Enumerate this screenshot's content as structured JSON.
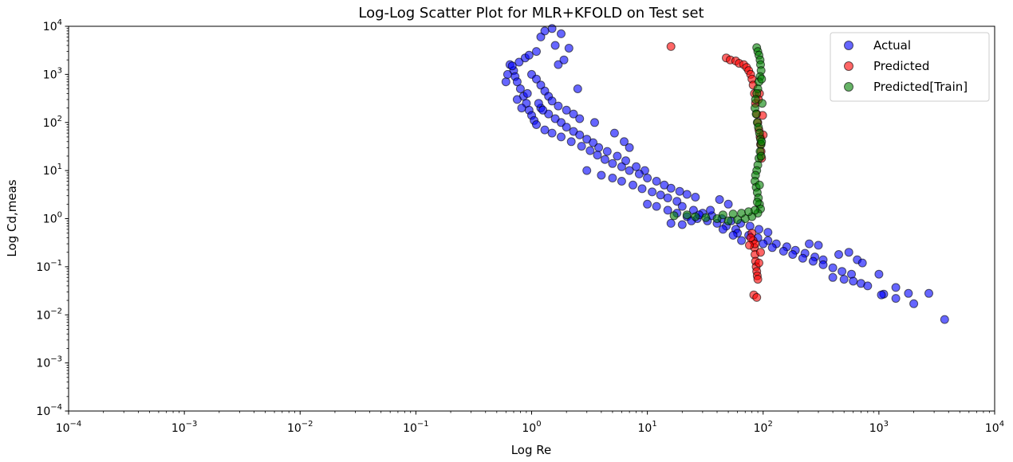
{
  "chart_data": {
    "type": "scatter",
    "title": "Log-Log Scatter Plot for MLR+KFOLD on Test set",
    "xlabel": "Log Re",
    "ylabel": "Log Cd,meas",
    "xscale": "log",
    "yscale": "log",
    "xlim": [
      0.0001,
      10000
    ],
    "ylim": [
      0.0001,
      10000
    ],
    "grid": false,
    "legend_position": "top-right",
    "x_tick_labels": [
      {
        "value": 0.0001,
        "base": "10",
        "exp": "−4"
      },
      {
        "value": 0.001,
        "base": "10",
        "exp": "−3"
      },
      {
        "value": 0.01,
        "base": "10",
        "exp": "−2"
      },
      {
        "value": 0.1,
        "base": "10",
        "exp": "−1"
      },
      {
        "value": 1,
        "base": "10",
        "exp": "0"
      },
      {
        "value": 10,
        "base": "10",
        "exp": "1"
      },
      {
        "value": 100,
        "base": "10",
        "exp": "2"
      },
      {
        "value": 1000,
        "base": "10",
        "exp": "3"
      },
      {
        "value": 10000,
        "base": "10",
        "exp": "4"
      }
    ],
    "y_tick_labels": [
      {
        "value": 0.0001,
        "base": "10",
        "exp": "−4"
      },
      {
        "value": 0.001,
        "base": "10",
        "exp": "−3"
      },
      {
        "value": 0.01,
        "base": "10",
        "exp": "−2"
      },
      {
        "value": 0.1,
        "base": "10",
        "exp": "−1"
      },
      {
        "value": 1,
        "base": "10",
        "exp": "0"
      },
      {
        "value": 10,
        "base": "10",
        "exp": "1"
      },
      {
        "value": 100,
        "base": "10",
        "exp": "2"
      },
      {
        "value": 1000,
        "base": "10",
        "exp": "3"
      },
      {
        "value": 10000,
        "base": "10",
        "exp": "4"
      }
    ],
    "series": [
      {
        "name": "Actual",
        "color": "#0000ff",
        "points": [
          [
            0.65,
            1600
          ],
          [
            0.7,
            1200
          ],
          [
            0.72,
            900
          ],
          [
            0.75,
            700
          ],
          [
            0.8,
            500
          ],
          [
            0.85,
            350
          ],
          [
            0.9,
            250
          ],
          [
            0.95,
            180
          ],
          [
            1.0,
            140
          ],
          [
            1.05,
            110
          ],
          [
            0.68,
            1500
          ],
          [
            0.78,
            1800
          ],
          [
            0.88,
            2200
          ],
          [
            0.95,
            2500
          ],
          [
            1.1,
            3000
          ],
          [
            1.2,
            6000
          ],
          [
            1.5,
            9000
          ],
          [
            1.3,
            8000
          ],
          [
            1.8,
            7000
          ],
          [
            1.6,
            4000
          ],
          [
            1.0,
            1000
          ],
          [
            1.1,
            800
          ],
          [
            1.2,
            600
          ],
          [
            1.3,
            450
          ],
          [
            1.4,
            350
          ],
          [
            1.5,
            280
          ],
          [
            1.7,
            220
          ],
          [
            2.0,
            180
          ],
          [
            2.3,
            150
          ],
          [
            2.6,
            120
          ],
          [
            1.2,
            200
          ],
          [
            1.4,
            150
          ],
          [
            1.6,
            120
          ],
          [
            1.8,
            100
          ],
          [
            2.0,
            80
          ],
          [
            2.3,
            65
          ],
          [
            2.6,
            55
          ],
          [
            3.0,
            45
          ],
          [
            3.4,
            38
          ],
          [
            3.8,
            30
          ],
          [
            1.1,
            90
          ],
          [
            1.3,
            70
          ],
          [
            1.5,
            60
          ],
          [
            1.8,
            50
          ],
          [
            2.2,
            40
          ],
          [
            2.7,
            32
          ],
          [
            3.2,
            26
          ],
          [
            3.7,
            21
          ],
          [
            4.3,
            17
          ],
          [
            5.0,
            14
          ],
          [
            2.5,
            500
          ],
          [
            3.5,
            100
          ],
          [
            5.2,
            60
          ],
          [
            6.3,
            40
          ],
          [
            7.0,
            30
          ],
          [
            4.5,
            25
          ],
          [
            5.5,
            20
          ],
          [
            6.5,
            16
          ],
          [
            8.0,
            12
          ],
          [
            9.5,
            10
          ],
          [
            3.0,
            10
          ],
          [
            4.0,
            8
          ],
          [
            5.0,
            7
          ],
          [
            6.0,
            6
          ],
          [
            7.5,
            5
          ],
          [
            9.0,
            4.2
          ],
          [
            11,
            3.6
          ],
          [
            13,
            3.1
          ],
          [
            15,
            2.7
          ],
          [
            18,
            2.3
          ],
          [
            6.0,
            12
          ],
          [
            7.0,
            10
          ],
          [
            8.5,
            8.5
          ],
          [
            10,
            7
          ],
          [
            12,
            6
          ],
          [
            14,
            5
          ],
          [
            16,
            4.3
          ],
          [
            19,
            3.7
          ],
          [
            22,
            3.2
          ],
          [
            26,
            2.8
          ],
          [
            10,
            2.0
          ],
          [
            12,
            1.8
          ],
          [
            15,
            1.5
          ],
          [
            18,
            1.3
          ],
          [
            22,
            1.1
          ],
          [
            27,
            1.0
          ],
          [
            33,
            0.9
          ],
          [
            40,
            0.8
          ],
          [
            48,
            0.7
          ],
          [
            58,
            0.6
          ],
          [
            20,
            1.8
          ],
          [
            25,
            1.5
          ],
          [
            30,
            1.3
          ],
          [
            36,
            1.15
          ],
          [
            44,
            1.0
          ],
          [
            53,
            0.9
          ],
          [
            64,
            0.8
          ],
          [
            77,
            0.7
          ],
          [
            92,
            0.6
          ],
          [
            110,
            0.52
          ],
          [
            60,
            0.5
          ],
          [
            75,
            0.45
          ],
          [
            90,
            0.4
          ],
          [
            110,
            0.35
          ],
          [
            130,
            0.3
          ],
          [
            160,
            0.26
          ],
          [
            190,
            0.22
          ],
          [
            230,
            0.19
          ],
          [
            280,
            0.16
          ],
          [
            330,
            0.14
          ],
          [
            100,
            0.3
          ],
          [
            120,
            0.25
          ],
          [
            150,
            0.21
          ],
          [
            180,
            0.18
          ],
          [
            220,
            0.15
          ],
          [
            270,
            0.13
          ],
          [
            330,
            0.11
          ],
          [
            400,
            0.095
          ],
          [
            480,
            0.08
          ],
          [
            580,
            0.07
          ],
          [
            400,
            0.06
          ],
          [
            500,
            0.055
          ],
          [
            600,
            0.05
          ],
          [
            700,
            0.045
          ],
          [
            800,
            0.04
          ],
          [
            1000,
            0.07
          ],
          [
            1100,
            0.027
          ],
          [
            1400,
            0.037
          ],
          [
            1800,
            0.028
          ],
          [
            2700,
            0.028
          ],
          [
            1050,
            0.026
          ],
          [
            1400,
            0.022
          ],
          [
            2000,
            0.017
          ],
          [
            3700,
            0.008
          ],
          [
            650,
            0.14
          ],
          [
            720,
            0.12
          ],
          [
            550,
            0.2
          ],
          [
            450,
            0.18
          ],
          [
            300,
            0.28
          ],
          [
            250,
            0.3
          ],
          [
            0.6,
            700
          ],
          [
            0.62,
            1000
          ],
          [
            0.75,
            300
          ],
          [
            0.82,
            200
          ],
          [
            1.15,
            250
          ],
          [
            1.25,
            180
          ],
          [
            0.92,
            400
          ],
          [
            1.7,
            1600
          ],
          [
            2.1,
            3500
          ],
          [
            1.9,
            2000
          ],
          [
            16,
            0.8
          ],
          [
            20,
            0.75
          ],
          [
            24,
            0.9
          ],
          [
            28,
            1.2
          ],
          [
            35,
            1.5
          ],
          [
            42,
            2.5
          ],
          [
            50,
            2.0
          ],
          [
            45,
            0.6
          ],
          [
            55,
            0.45
          ],
          [
            65,
            0.35
          ]
        ]
      },
      {
        "name": "Predicted",
        "color": "#ff0000",
        "points": [
          [
            16,
            3800
          ],
          [
            48,
            2200
          ],
          [
            52,
            2000
          ],
          [
            58,
            1900
          ],
          [
            62,
            1700
          ],
          [
            68,
            1600
          ],
          [
            72,
            1400
          ],
          [
            75,
            1200
          ],
          [
            78,
            1000
          ],
          [
            80,
            800
          ],
          [
            82,
            600
          ],
          [
            84,
            400
          ],
          [
            86,
            250
          ],
          [
            88,
            150
          ],
          [
            90,
            100
          ],
          [
            92,
            70
          ],
          [
            94,
            50
          ],
          [
            95,
            35
          ],
          [
            96,
            25
          ],
          [
            97,
            18
          ],
          [
            80,
            0.5
          ],
          [
            82,
            0.35
          ],
          [
            84,
            0.25
          ],
          [
            85,
            0.18
          ],
          [
            86,
            0.13
          ],
          [
            87,
            0.1
          ],
          [
            88,
            0.08
          ],
          [
            89,
            0.065
          ],
          [
            90,
            0.055
          ],
          [
            85,
            0.3
          ],
          [
            83,
            0.026
          ],
          [
            88,
            0.023
          ],
          [
            92,
            0.12
          ],
          [
            95,
            0.2
          ],
          [
            78,
            0.4
          ],
          [
            76,
            0.28
          ],
          [
            99,
            140
          ],
          [
            100,
            55
          ],
          [
            93,
            400
          ],
          [
            91,
            300
          ]
        ]
      },
      {
        "name": "Predicted[Train]",
        "color": "#008000",
        "points": [
          [
            88,
            3600
          ],
          [
            90,
            3000
          ],
          [
            92,
            2500
          ],
          [
            94,
            2000
          ],
          [
            95,
            1600
          ],
          [
            96,
            1200
          ],
          [
            94,
            900
          ],
          [
            92,
            700
          ],
          [
            90,
            500
          ],
          [
            88,
            400
          ],
          [
            86,
            300
          ],
          [
            85,
            200
          ],
          [
            87,
            150
          ],
          [
            89,
            100
          ],
          [
            91,
            80
          ],
          [
            93,
            60
          ],
          [
            95,
            45
          ],
          [
            96,
            35
          ],
          [
            94,
            25
          ],
          [
            92,
            18
          ],
          [
            90,
            13
          ],
          [
            88,
            10
          ],
          [
            86,
            8
          ],
          [
            85,
            6
          ],
          [
            87,
            4.5
          ],
          [
            89,
            3.5
          ],
          [
            91,
            2.7
          ],
          [
            93,
            2.0
          ],
          [
            95,
            1.6
          ],
          [
            90,
            1.3
          ],
          [
            80,
            1.1
          ],
          [
            70,
            1.0
          ],
          [
            60,
            0.95
          ],
          [
            50,
            0.9
          ],
          [
            40,
            1.0
          ],
          [
            32,
            1.05
          ],
          [
            26,
            1.1
          ],
          [
            22,
            1.2
          ],
          [
            17,
            1.15
          ],
          [
            45,
            1.2
          ],
          [
            55,
            1.25
          ],
          [
            65,
            1.3
          ],
          [
            75,
            1.4
          ],
          [
            85,
            1.5
          ],
          [
            97,
            40
          ],
          [
            98,
            250
          ],
          [
            97,
            800
          ],
          [
            96,
            20
          ],
          [
            93,
            5
          ],
          [
            89,
            2.2
          ]
        ]
      }
    ]
  }
}
